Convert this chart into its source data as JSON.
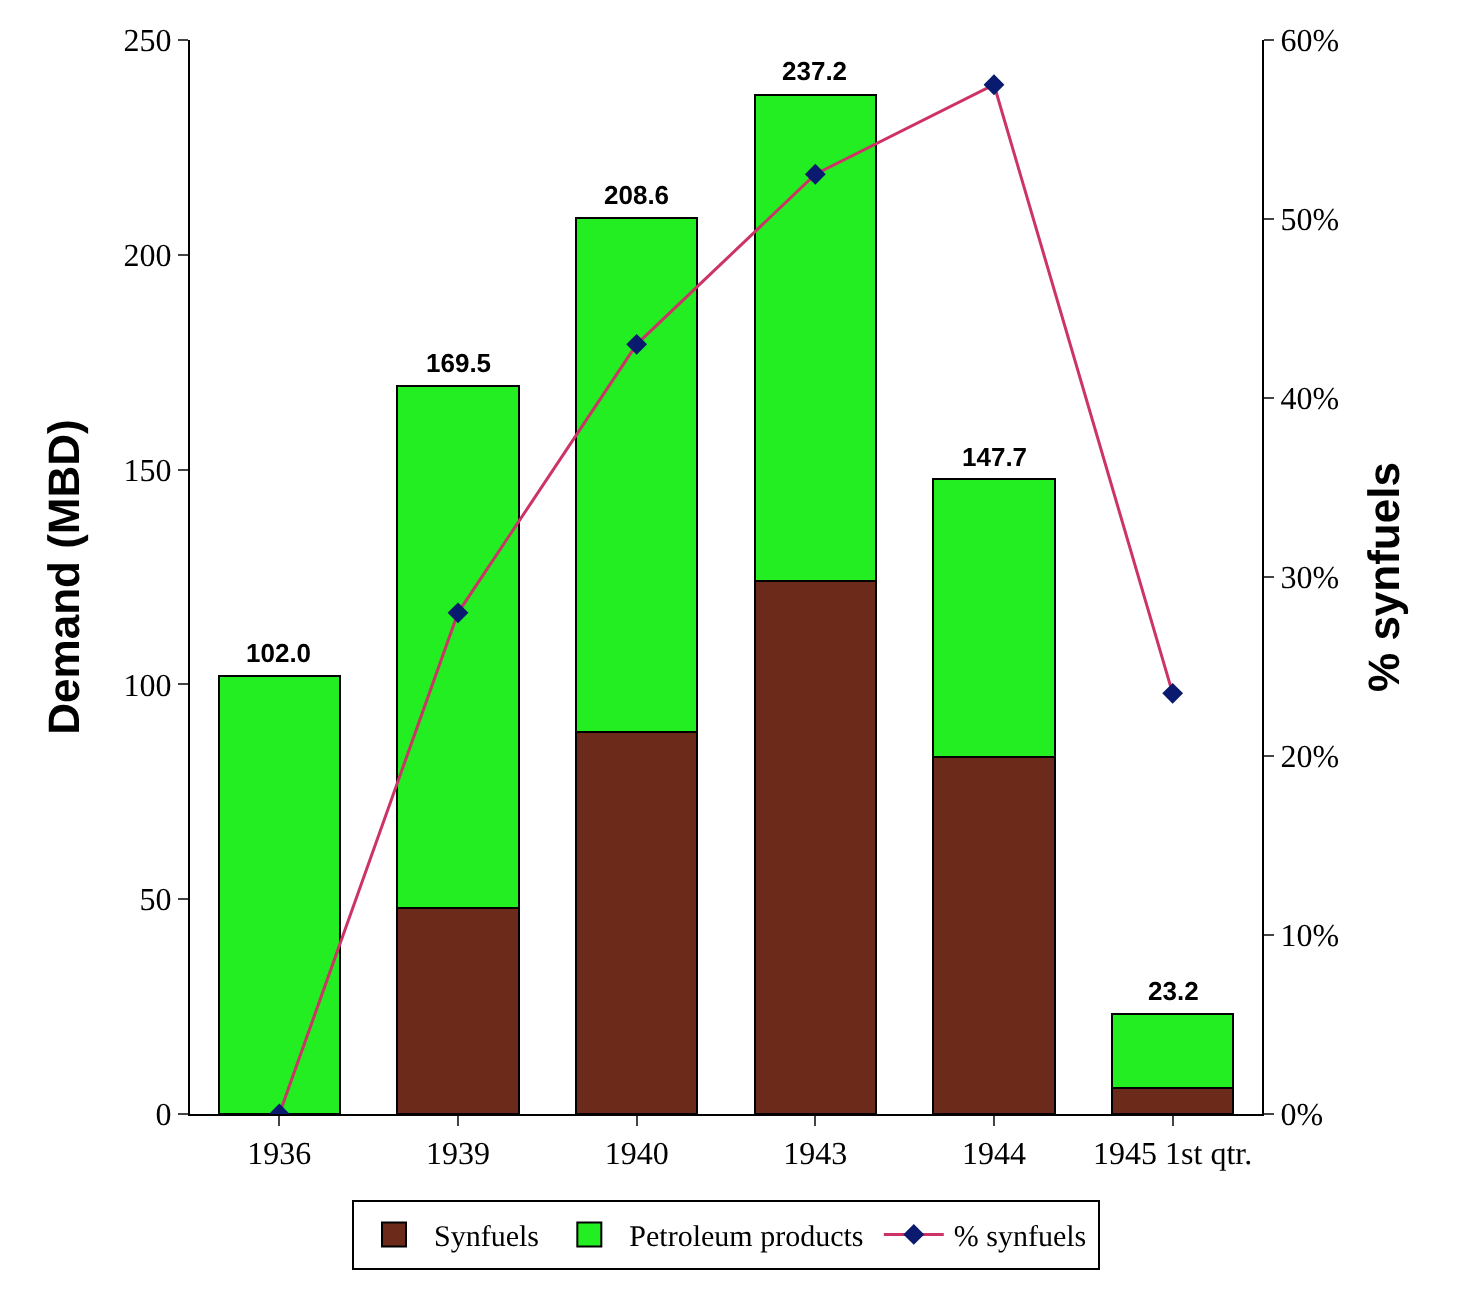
{
  "chart_data": {
    "type": "bar",
    "stacked": true,
    "categories": [
      "1936",
      "1939",
      "1940",
      "1943",
      "1944",
      "1945 1st qtr."
    ],
    "series": [
      {
        "name": "Synfuels",
        "color": "#6b2a1a",
        "values": [
          0,
          48,
          89,
          124,
          83,
          6
        ]
      },
      {
        "name": "Petroleum products",
        "color": "#22ee22",
        "values": [
          102.0,
          121.5,
          119.6,
          113.2,
          64.7,
          17.2
        ]
      },
      {
        "name": "% synfuels",
        "type": "line",
        "axis": "y2",
        "color": "#cc3366",
        "marker": "diamond",
        "values": [
          0,
          28,
          43,
          52.5,
          57.5,
          23.5
        ]
      }
    ],
    "totals": [
      "102.0",
      "169.5",
      "208.6",
      "237.2",
      "147.7",
      "23.2"
    ],
    "ylabel": "Demand (MBD)",
    "y2label": "% synfuels",
    "ylim": [
      0,
      250
    ],
    "yticks": [
      0,
      50,
      100,
      150,
      200,
      250
    ],
    "y2lim": [
      0,
      60
    ],
    "y2ticks": [
      {
        "value": 0,
        "label": "0%"
      },
      {
        "value": 10,
        "label": "10%"
      },
      {
        "value": 20,
        "label": "20%"
      },
      {
        "value": 30,
        "label": "30%"
      },
      {
        "value": 40,
        "label": "40%"
      },
      {
        "value": 50,
        "label": "50%"
      },
      {
        "value": 60,
        "label": "60%"
      }
    ],
    "legend": "bottom"
  }
}
